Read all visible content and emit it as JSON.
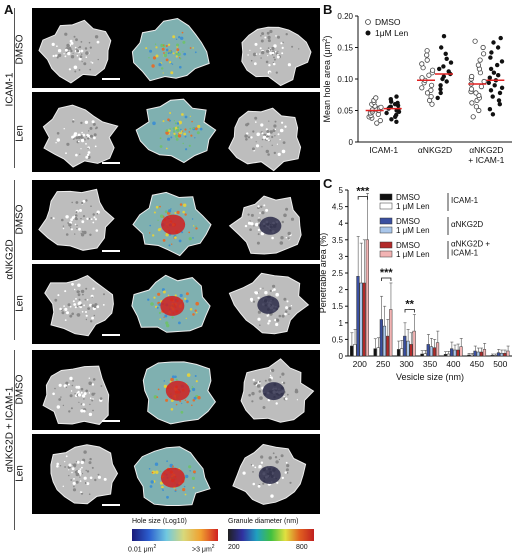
{
  "panels": {
    "a": "A",
    "b": "B",
    "c": "C"
  },
  "panel_a": {
    "groups": [
      {
        "label": "ICAM-1",
        "rows": [
          "DMSO",
          "Len"
        ]
      },
      {
        "label": "αNKG2D",
        "rows": [
          "DMSO",
          "Len"
        ]
      },
      {
        "label": "αNKG2D + ICAM-1",
        "rows": [
          "DMSO",
          "Len"
        ]
      }
    ],
    "colorbars": [
      {
        "title": "Hole size (Log10)",
        "min": "0.01 μm",
        "min_sup": "2",
        "max": ">3 μm",
        "max_sup": "2"
      },
      {
        "title": "Granule diameter (nm)",
        "min": "200",
        "max": "800"
      }
    ]
  },
  "chart_data": [
    {
      "type": "scatter",
      "panel": "B",
      "ylabel": "Mean hole area (μm",
      "ylabel_sup": "2",
      "ylabel_close": ")",
      "ylim": [
        0,
        0.2
      ],
      "yticks": [
        "0",
        "0.05",
        "0.10",
        "0.15",
        "0.20"
      ],
      "ytick_values": [
        0,
        0.05,
        0.1,
        0.15,
        0.2
      ],
      "categories": [
        "ICAM-1",
        "αNKG2D",
        "αNKG2D\n+ ICAM-1"
      ],
      "legend": {
        "placement": "top-left"
      },
      "series": [
        {
          "name": "DMSO",
          "marker": "open-circle",
          "groups": [
            [
              0.03,
              0.034,
              0.038,
              0.04,
              0.042,
              0.044,
              0.046,
              0.048,
              0.05,
              0.051,
              0.052,
              0.054,
              0.055,
              0.057,
              0.06,
              0.063,
              0.066,
              0.07
            ],
            [
              0.06,
              0.066,
              0.072,
              0.078,
              0.082,
              0.086,
              0.09,
              0.094,
              0.098,
              0.102,
              0.106,
              0.11,
              0.114,
              0.118,
              0.124,
              0.13,
              0.138,
              0.145
            ],
            [
              0.04,
              0.05,
              0.056,
              0.062,
              0.066,
              0.07,
              0.074,
              0.078,
              0.08,
              0.084,
              0.088,
              0.092,
              0.096,
              0.1,
              0.104,
              0.11,
              0.116,
              0.122,
              0.13,
              0.14,
              0.15,
              0.16
            ]
          ],
          "means": [
            0.05,
            0.098,
            0.092
          ]
        },
        {
          "name": "1μM Len",
          "marker": "filled-circle",
          "groups": [
            [
              0.032,
              0.036,
              0.04,
              0.043,
              0.046,
              0.048,
              0.05,
              0.052,
              0.053,
              0.055,
              0.056,
              0.058,
              0.06,
              0.062,
              0.064,
              0.068,
              0.072
            ],
            [
              0.07,
              0.078,
              0.084,
              0.09,
              0.096,
              0.1,
              0.104,
              0.108,
              0.112,
              0.116,
              0.12,
              0.126,
              0.132,
              0.14,
              0.15,
              0.168
            ],
            [
              0.044,
              0.052,
              0.06,
              0.066,
              0.072,
              0.078,
              0.082,
              0.086,
              0.09,
              0.094,
              0.098,
              0.102,
              0.106,
              0.11,
              0.116,
              0.122,
              0.128,
              0.134,
              0.142,
              0.15,
              0.158,
              0.165
            ]
          ],
          "means": [
            0.053,
            0.108,
            0.098
          ]
        }
      ]
    },
    {
      "type": "bar",
      "panel": "C",
      "ylabel": "Penetrable area (%)",
      "xlabel": "Vesicle size (nm)",
      "ylim": [
        0,
        5
      ],
      "yticks": [
        "0",
        "0.5",
        "1",
        "1.5",
        "2",
        "2.5",
        "3",
        "3.5",
        "4",
        "4.5",
        "5"
      ],
      "ytick_values": [
        0,
        0.5,
        1,
        1.5,
        2,
        2.5,
        3,
        3.5,
        4,
        4.5,
        5
      ],
      "categories": [
        "200",
        "250",
        "300",
        "350",
        "400",
        "450",
        "500"
      ],
      "series": [
        {
          "name": "DMSO",
          "group": "ICAM-1",
          "color": "#111111",
          "values": [
            0.3,
            0.22,
            0.2,
            0.06,
            0.05,
            0.03,
            0.02
          ],
          "errors": [
            0.4,
            0.3,
            0.25,
            0.1,
            0.08,
            0.05,
            0.04
          ]
        },
        {
          "name": "1 μM Len",
          "group": "ICAM-1",
          "color": "#ffffff",
          "values": [
            0.35,
            0.25,
            0.22,
            0.07,
            0.06,
            0.03,
            0.02
          ],
          "errors": [
            0.45,
            0.3,
            0.25,
            0.1,
            0.08,
            0.05,
            0.04
          ]
        },
        {
          "name": "DMSO",
          "group": "αNKG2D",
          "color": "#3a4fa0",
          "values": [
            2.4,
            1.1,
            0.6,
            0.35,
            0.22,
            0.15,
            0.1
          ],
          "errors": [
            1.2,
            0.7,
            0.4,
            0.3,
            0.2,
            0.15,
            0.1
          ]
        },
        {
          "name": "1 μM Len",
          "group": "αNKG2D",
          "color": "#a9c6ea",
          "values": [
            2.2,
            0.9,
            0.45,
            0.28,
            0.18,
            0.12,
            0.08
          ],
          "errors": [
            1.2,
            0.6,
            0.35,
            0.25,
            0.15,
            0.12,
            0.1
          ]
        },
        {
          "name": "DMSO",
          "group": "αNKG2D + ICAM-1",
          "color": "#b22a2a",
          "values": [
            2.2,
            0.6,
            0.35,
            0.25,
            0.18,
            0.12,
            0.08
          ],
          "errors": [
            1.3,
            0.5,
            0.35,
            0.25,
            0.18,
            0.12,
            0.1
          ]
        },
        {
          "name": "1 μM Len",
          "group": "αNKG2D + ICAM-1",
          "color": "#f2b3b3",
          "values": [
            3.5,
            1.4,
            0.75,
            0.4,
            0.28,
            0.2,
            0.15
          ],
          "errors": [
            1.4,
            0.8,
            0.5,
            0.35,
            0.25,
            0.18,
            0.15
          ]
        }
      ],
      "legend_groups": [
        "ICAM-1",
        "αNKG2D",
        "αNKG2D +\nICAM-1"
      ],
      "significance": [
        {
          "category": "200",
          "label": "***"
        },
        {
          "category": "250",
          "label": "***"
        },
        {
          "category": "300",
          "label": "**"
        }
      ]
    }
  ]
}
